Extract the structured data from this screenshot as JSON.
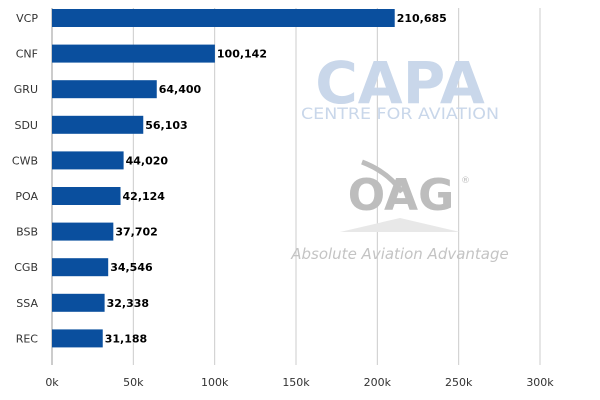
{
  "chart_data": {
    "type": "bar",
    "orientation": "horizontal",
    "categories": [
      "VCP",
      "CNF",
      "GRU",
      "SDU",
      "CWB",
      "POA",
      "BSB",
      "CGB",
      "SSA",
      "REC"
    ],
    "values": [
      210685,
      100142,
      64400,
      56103,
      44020,
      42124,
      37702,
      34546,
      32338,
      31188
    ],
    "data_labels": [
      "210,685",
      "100,142",
      "64,400",
      "56,103",
      "44,020",
      "42,124",
      "37,702",
      "34,546",
      "32,338",
      "31,188"
    ],
    "xlim": [
      0,
      300000
    ],
    "x_ticks": [
      0,
      50000,
      100000,
      150000,
      200000,
      250000,
      300000
    ],
    "x_tick_labels": [
      "0k",
      "50k",
      "100k",
      "150k",
      "200k",
      "250k",
      "300k"
    ],
    "grid": true,
    "bar_color": "#0a4f9e",
    "title": "",
    "xlabel": "",
    "ylabel": ""
  },
  "watermarks": {
    "capa": {
      "name": "CAPA",
      "subtitle": "CENTRE FOR AVIATION",
      "color": "#c9d7ea"
    },
    "oag": {
      "name": "OAG",
      "registered": "®",
      "tagline": "Absolute Aviation Advantage",
      "color": "#bdbdbd"
    }
  }
}
